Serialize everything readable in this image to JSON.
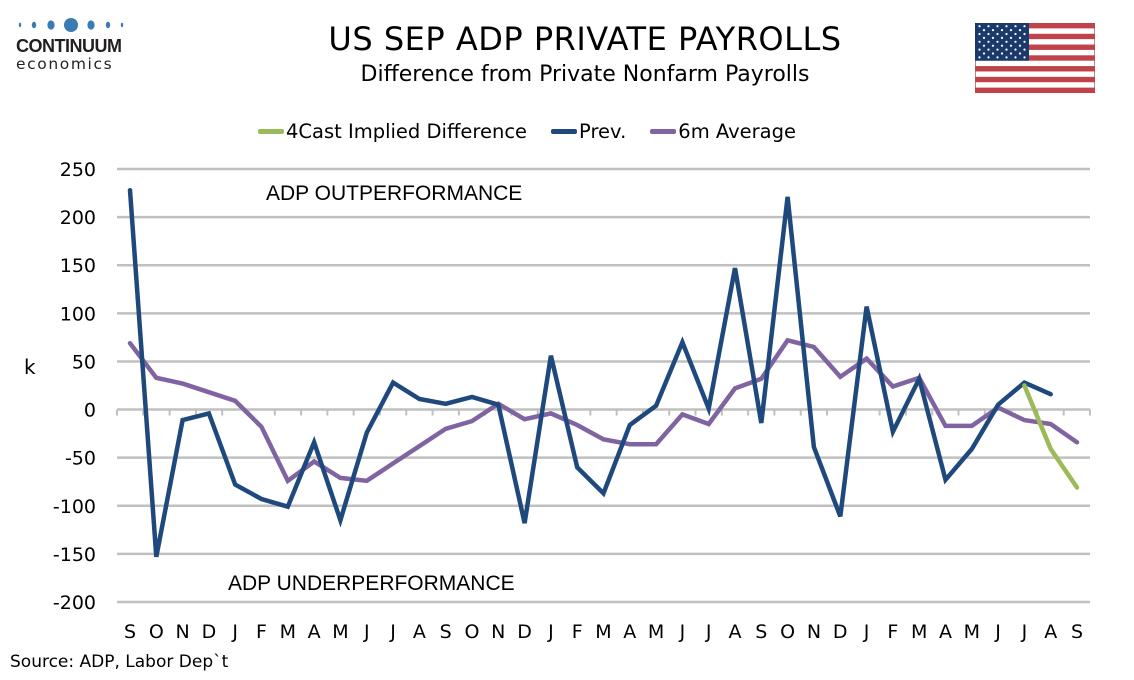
{
  "logo": {
    "name": "CONTINUUM",
    "sub": "economics",
    "dot_color": "#3a7ab5"
  },
  "header": {
    "title": "US SEP ADP PRIVATE PAYROLLS",
    "subtitle": "Difference from Private Nonfarm Payrolls",
    "flag_icon": "us-flag-icon"
  },
  "colors": {
    "forecast": "#9bbb59",
    "prev": "#1f497d",
    "avg": "#8064a2",
    "grid": "#c0c0c0"
  },
  "source": "Source: ADP, Labor Dep`t",
  "chart_data": {
    "type": "line",
    "title": "US SEP ADP PRIVATE PAYROLLS",
    "subtitle": "Difference from Private Nonfarm Payrolls",
    "xlabel": "",
    "ylabel": "k",
    "ylim": [
      -200,
      250
    ],
    "yticks": [
      250,
      200,
      150,
      100,
      50,
      0,
      -50,
      -100,
      -150,
      -200
    ],
    "grid": true,
    "legend": "top-center",
    "annotations": [
      {
        "text": "ADP OUTPERFORMANCE",
        "x_index": 5.2,
        "y": 225
      },
      {
        "text": "ADP UNDERPERFORMANCE",
        "x_index": 3.8,
        "y": -180
      }
    ],
    "categories": [
      "S",
      "O",
      "N",
      "D",
      "J",
      "F",
      "M",
      "A",
      "M",
      "J",
      "J",
      "A",
      "S",
      "O",
      "N",
      "D",
      "J",
      "F",
      "M",
      "A",
      "M",
      "J",
      "J",
      "A",
      "S",
      "O",
      "N",
      "D",
      "J",
      "F",
      "M",
      "A",
      "M",
      "J",
      "J",
      "A",
      "S"
    ],
    "series": [
      {
        "name": "4Cast Implied Difference",
        "color": "#9bbb59",
        "values": [
          null,
          null,
          null,
          null,
          null,
          null,
          null,
          null,
          null,
          null,
          null,
          null,
          null,
          null,
          null,
          null,
          null,
          null,
          null,
          null,
          null,
          null,
          null,
          null,
          null,
          null,
          null,
          null,
          null,
          null,
          null,
          null,
          null,
          null,
          25,
          -41,
          -81
        ]
      },
      {
        "name": "Prev.",
        "color": "#1f497d",
        "values": [
          228,
          -153,
          -11,
          -4,
          -78,
          -93,
          -101,
          -34,
          -115,
          -24,
          28,
          11,
          6,
          13,
          5,
          -118,
          56,
          -60,
          -87,
          -16,
          4,
          70,
          1,
          147,
          -14,
          221,
          -39,
          -111,
          107,
          -23,
          32,
          -73,
          -41,
          5,
          28,
          16,
          null
        ]
      },
      {
        "name": "6m Average",
        "color": "#8064a2",
        "values": [
          69,
          33,
          27,
          18,
          9,
          -18,
          -74,
          -54,
          -71,
          -74,
          -56,
          -38,
          -20,
          -12,
          6,
          -10,
          -4,
          -16,
          -31,
          -36,
          -36,
          -5,
          -15,
          22,
          32,
          72,
          65,
          34,
          53,
          24,
          33,
          -17,
          -17,
          2,
          -11,
          -15,
          -34
        ]
      }
    ]
  }
}
